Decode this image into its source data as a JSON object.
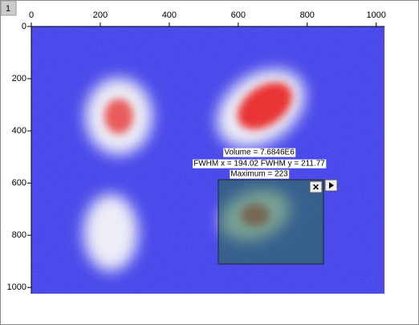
{
  "tab": "1",
  "chart_data": {
    "type": "image",
    "xlim": [
      0,
      1024
    ],
    "ylim": [
      0,
      1024
    ],
    "y_reversed": true,
    "x_axis_side": "top",
    "xticks": [
      0,
      200,
      400,
      600,
      800,
      1000
    ],
    "yticks": [
      0,
      200,
      400,
      600,
      800,
      1000
    ],
    "annotations": [
      "Volume = 7.6846E6",
      "FWHM x = 194.02 FWHM y = 211.77",
      "Maximum = 223"
    ]
  }
}
